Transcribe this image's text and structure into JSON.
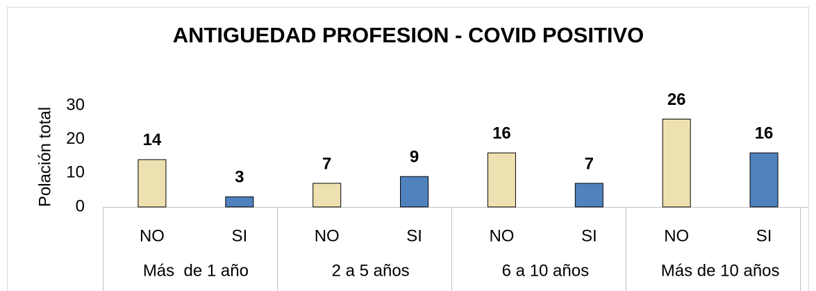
{
  "chart_data": {
    "type": "bar",
    "title": "ANTIGUEDAD PROFESION - COVID POSITIVO",
    "y_label": "Polación total",
    "categories": [
      "NO",
      "SI",
      "NO",
      "SI",
      "NO",
      "SI",
      "NO",
      "SI"
    ],
    "groups": [
      "Más  de 1 año",
      "2 a 5 años",
      "6 a 10 años",
      "Más de 10 años"
    ],
    "values": [
      14,
      3,
      7,
      9,
      16,
      7,
      26,
      16
    ],
    "colors": [
      "#eee1b1",
      "#4f81bd",
      "#eee1b1",
      "#4f81bd",
      "#eee1b1",
      "#4f81bd",
      "#eee1b1",
      "#4f81bd"
    ],
    "ylim": [
      0,
      30
    ],
    "yticks": [
      0,
      10,
      20,
      30
    ],
    "grid": false
  }
}
